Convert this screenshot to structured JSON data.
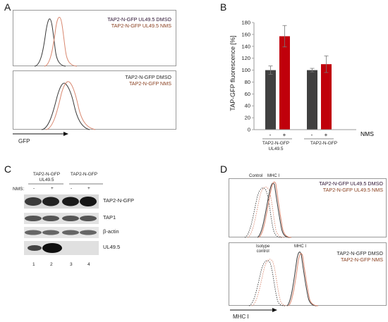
{
  "panels": {
    "A": {
      "label": "A",
      "top_legend": [
        "TAP2-N-GFP UL49.5 DMSO",
        "TAP2-N-GFP UL49.5 NMS"
      ],
      "bottom_legend": [
        "TAP2-N-GFP DMSO",
        "TAP2-N-GFP NMS"
      ],
      "xlabel": "GFP"
    },
    "B": {
      "label": "B",
      "treatment_label": "NMS",
      "group_labels": [
        "TAP2-N-GFP\nUL49.5",
        "TAP2-N-GFP"
      ],
      "minus": "-",
      "plus": "+"
    },
    "C": {
      "label": "C",
      "group1_label": "TAP2-N-GFP\nUL49.5",
      "group2_label": "TAP2-N-GFP",
      "nms_label": "NMS:",
      "lane_signs": [
        "-",
        "+",
        "-",
        "+"
      ],
      "bands": [
        "TAP2-N-GFP",
        "TAP1",
        "β-actin",
        "UL49.5"
      ],
      "lane_numbers": [
        "1",
        "2",
        "3",
        "4"
      ]
    },
    "D": {
      "label": "D",
      "top_legend": [
        "TAP2-N-GFP UL49.5 DMSO",
        "TAP2-N-GFP UL49.5 NMS"
      ],
      "bottom_legend": [
        "TAP2-N-GFP DMSO",
        "TAP2-N-GFP NMS"
      ],
      "top_annotations": [
        "Control",
        "MHC I"
      ],
      "bottom_annotations": [
        "Isotype\ncontrol",
        "MHC I"
      ],
      "xlabel": "MHC I"
    }
  },
  "colors": {
    "dmso": "#3a3a3a",
    "nms": "#d98870",
    "bar_dark": "#404040",
    "bar_red": "#c0000b",
    "legend_dmso": "#2a1030",
    "legend_nms": "#8a4020"
  },
  "chart_data": {
    "type": "bar",
    "ylabel": "TAP-GFP fluorescence [%]",
    "ylim": [
      0,
      180
    ],
    "yticks": [
      "0",
      "20",
      "40",
      "60",
      "80",
      "100",
      "120",
      "140",
      "160",
      "180"
    ],
    "categories": [
      "TAP2-N-GFP UL49.5 -",
      "TAP2-N-GFP UL49.5 +",
      "TAP2-N-GFP -",
      "TAP2-N-GFP +"
    ],
    "values": [
      100,
      157,
      100,
      110
    ],
    "errors": [
      7,
      18,
      3,
      14
    ],
    "bar_colors": [
      "#404040",
      "#c0000b",
      "#404040",
      "#c0000b"
    ]
  }
}
